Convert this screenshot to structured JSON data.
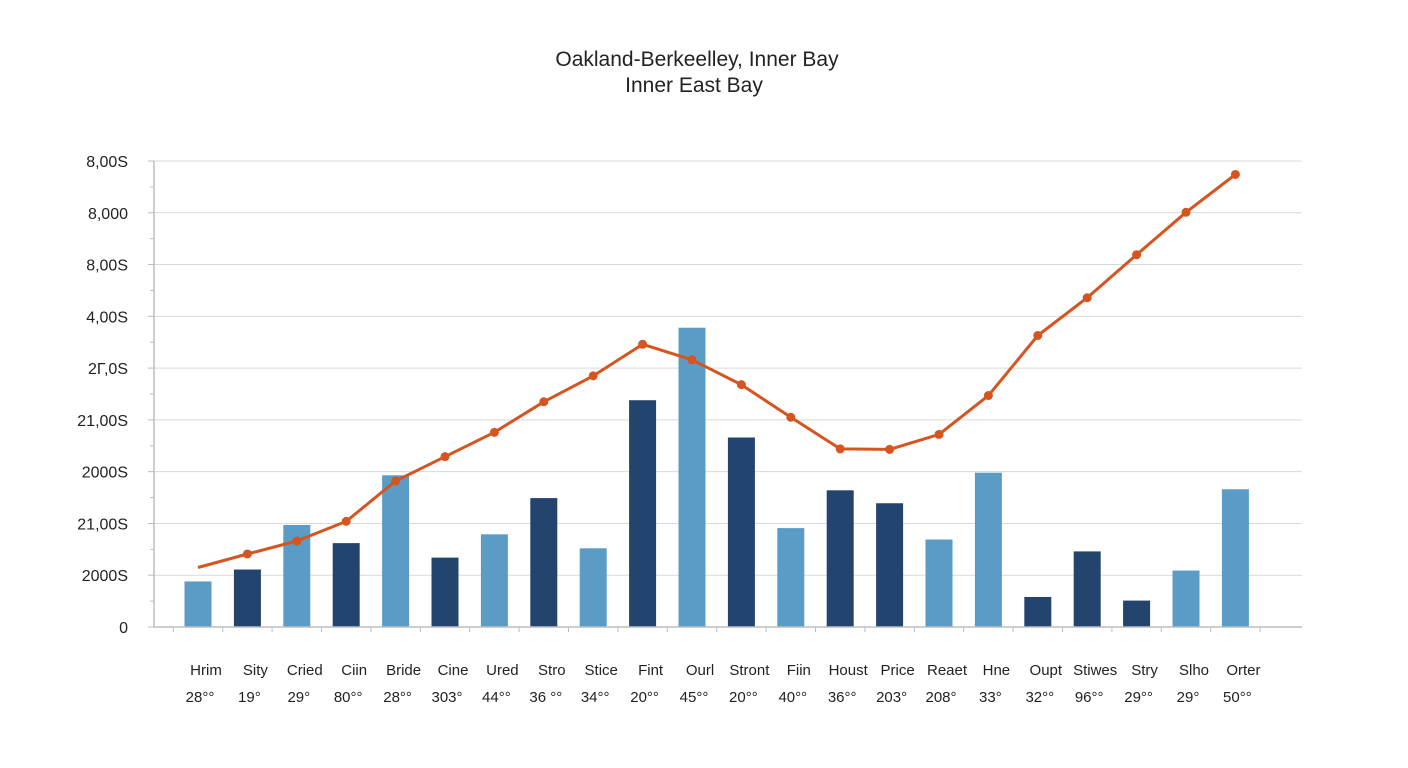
{
  "chart_data": {
    "type": "bar",
    "title": "Oakland-Berkeelley, Inner Bay",
    "subtitle": "Inner East Bay",
    "xlabel": "",
    "ylabel": "",
    "grid": true,
    "legend": "none",
    "ylim": [
      0,
      9
    ],
    "yticks": [
      {
        "value": 0,
        "label": "0"
      },
      {
        "value": 1,
        "label": "2000S"
      },
      {
        "value": 2,
        "label": "21,00S"
      },
      {
        "value": 3,
        "label": "2000S"
      },
      {
        "value": 4,
        "label": "21,00S"
      },
      {
        "value": 5,
        "label": "2Γ,0S"
      },
      {
        "value": 6,
        "label": "4,00S"
      },
      {
        "value": 7,
        "label": "8,00S"
      },
      {
        "value": 8,
        "label": "8,000"
      },
      {
        "value": 9,
        "label": "8,00S"
      }
    ],
    "categories": [
      "Hrim",
      "Sity",
      "Cried",
      "Ciin",
      "Bride",
      "Cine",
      "Ured",
      "Stro",
      "Stice",
      "Fint",
      "Ourl",
      "Stront",
      "Fiin",
      "Houst",
      "Price",
      "Reaet",
      "Hne",
      "Oupt",
      "Stiwes",
      "Stry",
      "Slho",
      "Orter"
    ],
    "sublabels": [
      "28°°",
      "19°",
      "29°",
      "80°°",
      "28°°",
      "303°",
      "44°°",
      "36 °°",
      "34°°",
      "20°°",
      "45°°",
      "20°°",
      "40°°",
      "36°°",
      "203°",
      "208°",
      "33°",
      "32°°",
      "96°°",
      "29°°",
      "29°",
      "50°°"
    ],
    "series": [
      {
        "type": "bar",
        "values": [
          0.88,
          1.11,
          1.97,
          1.62,
          2.93,
          1.34,
          1.79,
          2.49,
          1.52,
          4.38,
          5.78,
          3.66,
          1.91,
          2.64,
          2.39,
          1.69,
          2.98,
          0.58,
          1.46,
          0.51,
          1.09,
          2.66
        ],
        "color_pattern": [
          "light",
          "dark",
          "light",
          "dark",
          "light",
          "dark",
          "light",
          "dark",
          "light",
          "dark",
          "light",
          "dark",
          "light",
          "dark",
          "dark",
          "light",
          "light",
          "dark",
          "dark",
          "dark",
          "light",
          "light"
        ]
      },
      {
        "type": "line",
        "values": [
          1.15,
          1.41,
          1.66,
          2.04,
          2.82,
          3.29,
          3.76,
          4.35,
          4.85,
          5.46,
          5.16,
          4.68,
          4.05,
          3.44,
          3.43,
          3.72,
          4.47,
          5.63,
          6.36,
          7.19,
          8.01,
          8.74
        ]
      }
    ],
    "colors": {
      "bar_light": "#5b9cc6",
      "bar_dark": "#23446e",
      "line": "#d6541f"
    }
  }
}
